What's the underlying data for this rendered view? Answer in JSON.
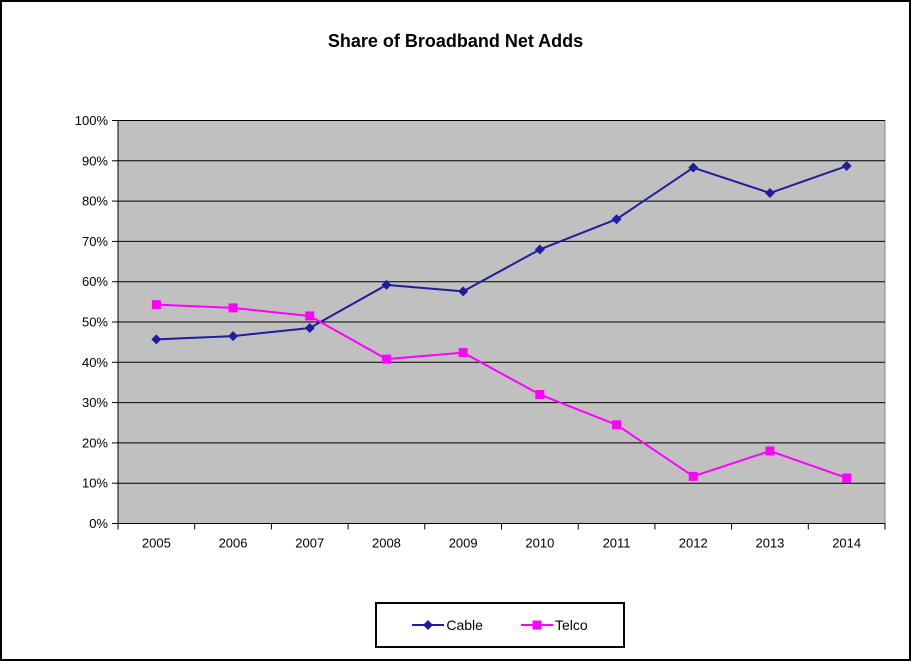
{
  "chart_data": {
    "type": "line",
    "title": "Share of Broadband Net Adds",
    "categories": [
      "2005",
      "2006",
      "2007",
      "2008",
      "2009",
      "2010",
      "2011",
      "2012",
      "2013",
      "2014"
    ],
    "series": [
      {
        "name": "Cable",
        "color": "#1F1F9C",
        "marker": "diamond",
        "values": [
          45.7,
          46.5,
          48.5,
          59.2,
          57.6,
          68.0,
          75.5,
          88.3,
          82.0,
          88.7
        ]
      },
      {
        "name": "Telco",
        "color": "#FF00FF",
        "marker": "square",
        "values": [
          54.3,
          53.5,
          51.5,
          40.8,
          42.4,
          32.0,
          24.5,
          11.7,
          18.0,
          11.3
        ]
      }
    ],
    "xlabel": "",
    "ylabel": "",
    "ylim": [
      0,
      100
    ],
    "yticks": [
      "0%",
      "10%",
      "20%",
      "30%",
      "40%",
      "50%",
      "60%",
      "70%",
      "80%",
      "90%",
      "100%"
    ],
    "grid": true,
    "legend_position": "bottom",
    "plot_bg": "#C0C0C0",
    "plot_border_color": "#848484",
    "gridline_color": "#000000",
    "axis_color": "#000000",
    "text_color": "#000000"
  }
}
